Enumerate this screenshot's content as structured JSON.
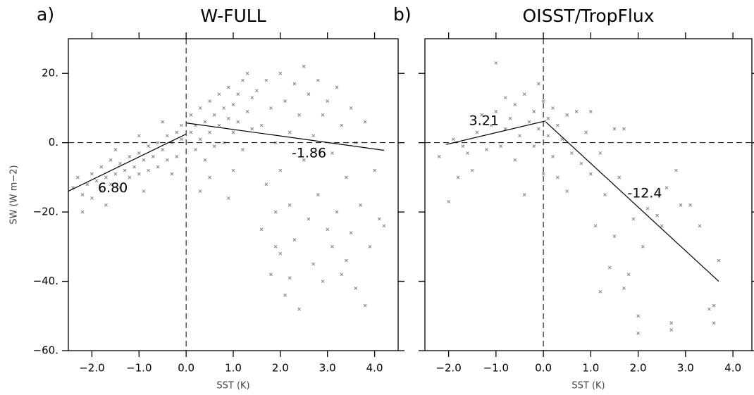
{
  "chart_data": [
    {
      "type": "scatter",
      "panel_label": "a)",
      "title": "W-FULL",
      "xlabel": "SST (K)",
      "ylabel": "SW (W m−2)",
      "xlim": [
        -2.5,
        4.5
      ],
      "ylim": [
        -60,
        30
      ],
      "xticks": [
        {
          "value": -2,
          "label": "−2.0"
        },
        {
          "value": -1,
          "label": "−1.0"
        },
        {
          "value": 0,
          "label": "0.0"
        },
        {
          "value": 1,
          "label": "1.0"
        },
        {
          "value": 2,
          "label": "2.0"
        },
        {
          "value": 3,
          "label": "3.0"
        },
        {
          "value": 4,
          "label": "4.0"
        }
      ],
      "yticks": [
        {
          "value": -60,
          "label": "−60."
        },
        {
          "value": -40,
          "label": "−40."
        },
        {
          "value": -20,
          "label": "−20."
        },
        {
          "value": 0,
          "label": "0."
        },
        {
          "value": 20,
          "label": "20."
        }
      ],
      "ytick_labels": true,
      "hline": 0,
      "vline": 0,
      "color": "#808080",
      "line_color": "#000000",
      "x": [
        -2.4,
        -2.3,
        -2.2,
        -2.1,
        -2.0,
        -2.0,
        -1.9,
        -1.8,
        -1.8,
        -1.7,
        -1.6,
        -1.6,
        -1.5,
        -1.4,
        -1.4,
        -1.3,
        -1.2,
        -1.2,
        -1.1,
        -1.0,
        -1.0,
        -0.9,
        -0.8,
        -0.8,
        -0.7,
        -0.6,
        -0.6,
        -0.5,
        -0.4,
        -0.4,
        -0.3,
        -0.2,
        -0.2,
        -0.1,
        -0.1,
        -1.5,
        -1.0,
        -0.5,
        -2.2,
        -1.7,
        -0.9,
        -0.3,
        0.1,
        0.1,
        0.2,
        0.2,
        0.3,
        0.3,
        0.4,
        0.4,
        0.5,
        0.5,
        0.6,
        0.6,
        0.7,
        0.7,
        0.8,
        0.8,
        0.9,
        0.9,
        1.0,
        1.0,
        1.1,
        1.1,
        1.2,
        1.2,
        1.3,
        1.3,
        1.4,
        1.4,
        0.5,
        0.9,
        1.0,
        0.3,
        1.5,
        1.6,
        1.6,
        1.7,
        1.7,
        1.8,
        1.8,
        1.9,
        1.9,
        2.0,
        2.0,
        2.0,
        2.1,
        2.1,
        2.2,
        2.2,
        2.3,
        2.3,
        2.4,
        2.4,
        2.5,
        2.5,
        2.6,
        2.6,
        2.7,
        2.7,
        2.8,
        2.8,
        2.9,
        2.9,
        3.0,
        3.0,
        3.1,
        3.1,
        3.2,
        3.2,
        3.3,
        3.3,
        3.4,
        3.5,
        3.5,
        3.6,
        3.6,
        3.7,
        3.8,
        3.8,
        3.9,
        4.0,
        4.1,
        4.2,
        3.4,
        2.2,
        1.9
      ],
      "values": [
        -13,
        -10,
        -15,
        -12,
        -9,
        -16,
        -11,
        -7,
        -14,
        -10,
        -5,
        -12,
        -9,
        -6,
        -13,
        -8,
        -4,
        -10,
        -7,
        -3,
        -9,
        -5,
        -1,
        -8,
        -4,
        0,
        -7,
        -2,
        2,
        -5,
        0,
        3,
        -4,
        1,
        5,
        -2,
        2,
        6,
        -20,
        -18,
        -14,
        -9,
        3,
        8,
        -2,
        5,
        10,
        1,
        6,
        -5,
        12,
        3,
        8,
        -1,
        14,
        5,
        10,
        0,
        7,
        16,
        3,
        11,
        14,
        6,
        -2,
        18,
        9,
        20,
        4,
        13,
        -10,
        -16,
        -8,
        -14,
        15,
        -25,
        5,
        18,
        -12,
        -38,
        10,
        0,
        -20,
        20,
        -8,
        -32,
        12,
        -44,
        3,
        -18,
        17,
        -28,
        -48,
        8,
        22,
        -5,
        -22,
        14,
        -35,
        2,
        18,
        -15,
        -40,
        8,
        -25,
        12,
        -3,
        -30,
        16,
        -20,
        -38,
        5,
        -10,
        10,
        -26,
        -42,
        0,
        -18,
        6,
        -47,
        -30,
        -8,
        -22,
        -24,
        -34,
        -39,
        -30
      ],
      "fits": [
        {
          "x": [
            -2.5,
            0
          ],
          "y": [
            -14,
            2.5
          ],
          "label": "6.80"
        },
        {
          "x": [
            0,
            4.2
          ],
          "y": [
            5.7,
            -2.2
          ],
          "label": "-1.86"
        }
      ]
    },
    {
      "type": "scatter",
      "panel_label": "b)",
      "title": "OISST/TropFlux",
      "xlabel": "SST (K)",
      "xlim": [
        -2.5,
        4.4
      ],
      "ylim": [
        -60,
        30
      ],
      "xticks": [
        {
          "value": -2,
          "label": "−2.0"
        },
        {
          "value": -1,
          "label": "−1.0"
        },
        {
          "value": 0,
          "label": "0.0"
        },
        {
          "value": 1,
          "label": "1.0"
        },
        {
          "value": 2,
          "label": "2.0"
        },
        {
          "value": 3,
          "label": "3.0"
        },
        {
          "value": 4,
          "label": "4.0"
        }
      ],
      "yticks": [
        -60,
        -40,
        -20,
        0,
        20
      ],
      "ytick_labels": false,
      "hline": 0,
      "vline": 0,
      "color": "#808080",
      "line_color": "#000000",
      "x": [
        -2.0,
        -1.8,
        -1.9,
        -1.6,
        -1.5,
        -1.4,
        -1.3,
        -1.2,
        -1.1,
        -1.0,
        -1.0,
        -0.9,
        -0.8,
        -0.8,
        -0.7,
        -0.6,
        -0.6,
        -0.5,
        -0.4,
        -0.4,
        -0.3,
        -0.2,
        -0.2,
        -0.1,
        -0.1,
        0.0,
        0.0,
        0.1,
        0.1,
        0.2,
        0.2,
        0.3,
        0.3,
        0.4,
        0.5,
        0.5,
        0.6,
        0.7,
        0.8,
        0.9,
        1.0,
        1.0,
        1.1,
        1.2,
        1.2,
        1.3,
        1.4,
        1.5,
        1.6,
        1.7,
        1.8,
        1.9,
        2.0,
        2.0,
        2.1,
        2.2,
        2.4,
        2.5,
        2.6,
        2.7,
        2.7,
        2.8,
        2.9,
        3.1,
        3.3,
        3.5,
        3.6,
        3.6,
        3.7,
        1.5,
        1.7,
        -2.2,
        -1.7
      ],
      "values": [
        -17,
        -10,
        1,
        -3,
        -8,
        3,
        8,
        -2,
        5,
        9,
        23,
        -1,
        13,
        4,
        7,
        -5,
        11,
        2,
        14,
        -15,
        6,
        9,
        -1,
        4,
        17,
        -9,
        12,
        2,
        7,
        -4,
        10,
        5,
        -10,
        1,
        8,
        -14,
        -3,
        9,
        -6,
        3,
        -9,
        9,
        -24,
        -43,
        -3,
        -15,
        -36,
        -27,
        -10,
        -42,
        -38,
        -22,
        -55,
        -50,
        -30,
        -19,
        -21,
        -24,
        -13,
        -52,
        -54,
        -8,
        -18,
        -18,
        -24,
        -48,
        -47,
        -52,
        -34,
        4,
        4,
        -4,
        -1
      ],
      "fits": [
        {
          "x": [
            -2.05,
            0.05
          ],
          "y": [
            -0.5,
            6.3
          ],
          "label": "3.21"
        },
        {
          "x": [
            0.05,
            3.7
          ],
          "y": [
            6.0,
            -40
          ],
          "label": "-12.4"
        }
      ]
    }
  ]
}
